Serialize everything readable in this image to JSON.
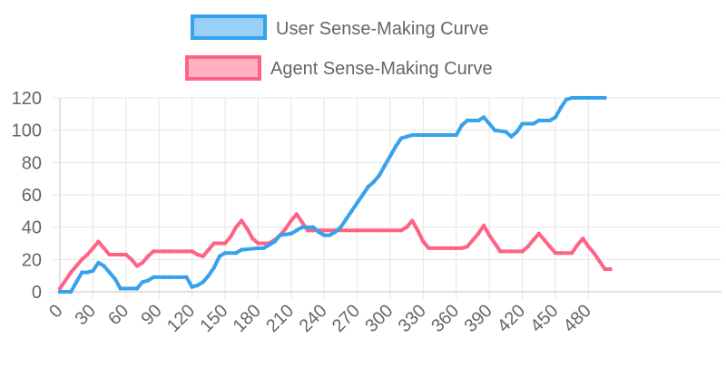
{
  "chart_data": {
    "type": "line",
    "title": "",
    "xlabel": "",
    "ylabel": "",
    "xlim": [
      0,
      495
    ],
    "ylim": [
      0,
      120
    ],
    "x_ticks": [
      0,
      30,
      60,
      90,
      120,
      150,
      180,
      210,
      240,
      270,
      300,
      330,
      360,
      390,
      420,
      450,
      480
    ],
    "y_ticks": [
      0,
      20,
      40,
      60,
      80,
      100,
      120
    ],
    "grid": true,
    "legend_position": "top-center",
    "series": [
      {
        "name": "User Sense-Making Curve",
        "color": "#36a2eb",
        "fill": "#9ad0f5",
        "points": [
          [
            0,
            0
          ],
          [
            10,
            0
          ],
          [
            15,
            6
          ],
          [
            20,
            12
          ],
          [
            25,
            12
          ],
          [
            30,
            13
          ],
          [
            35,
            18
          ],
          [
            40,
            16
          ],
          [
            45,
            12
          ],
          [
            50,
            8
          ],
          [
            55,
            2
          ],
          [
            70,
            2
          ],
          [
            75,
            6
          ],
          [
            80,
            7
          ],
          [
            85,
            9
          ],
          [
            95,
            9
          ],
          [
            100,
            9
          ],
          [
            115,
            9
          ],
          [
            120,
            3
          ],
          [
            125,
            4
          ],
          [
            130,
            6
          ],
          [
            135,
            10
          ],
          [
            140,
            15
          ],
          [
            145,
            22
          ],
          [
            150,
            24
          ],
          [
            160,
            24
          ],
          [
            165,
            26
          ],
          [
            180,
            27
          ],
          [
            185,
            27
          ],
          [
            190,
            29
          ],
          [
            195,
            31
          ],
          [
            200,
            35
          ],
          [
            210,
            36
          ],
          [
            215,
            38
          ],
          [
            220,
            40
          ],
          [
            230,
            40
          ],
          [
            235,
            37
          ],
          [
            240,
            35
          ],
          [
            245,
            35
          ],
          [
            250,
            37
          ],
          [
            255,
            40
          ],
          [
            260,
            45
          ],
          [
            265,
            50
          ],
          [
            270,
            55
          ],
          [
            275,
            60
          ],
          [
            280,
            65
          ],
          [
            285,
            68
          ],
          [
            290,
            72
          ],
          [
            295,
            78
          ],
          [
            300,
            84
          ],
          [
            305,
            90
          ],
          [
            310,
            95
          ],
          [
            315,
            96
          ],
          [
            320,
            97
          ],
          [
            330,
            97
          ],
          [
            340,
            97
          ],
          [
            350,
            97
          ],
          [
            355,
            97
          ],
          [
            360,
            97
          ],
          [
            365,
            103
          ],
          [
            370,
            106
          ],
          [
            380,
            106
          ],
          [
            385,
            108
          ],
          [
            390,
            104
          ],
          [
            395,
            100
          ],
          [
            405,
            99
          ],
          [
            410,
            96
          ],
          [
            415,
            99
          ],
          [
            420,
            104
          ],
          [
            430,
            104
          ],
          [
            435,
            106
          ],
          [
            445,
            106
          ],
          [
            450,
            108
          ],
          [
            455,
            114
          ],
          [
            460,
            119
          ],
          [
            465,
            120
          ],
          [
            475,
            120
          ],
          [
            485,
            120
          ],
          [
            495,
            120
          ]
        ]
      },
      {
        "name": "Agent Sense-Making Curve",
        "color": "#ff6384",
        "fill": "#ffb1c1",
        "points": [
          [
            0,
            2
          ],
          [
            5,
            7
          ],
          [
            10,
            12
          ],
          [
            15,
            16
          ],
          [
            20,
            20
          ],
          [
            25,
            23
          ],
          [
            30,
            27
          ],
          [
            35,
            31
          ],
          [
            40,
            27
          ],
          [
            45,
            23
          ],
          [
            55,
            23
          ],
          [
            60,
            23
          ],
          [
            65,
            20
          ],
          [
            70,
            16
          ],
          [
            75,
            18
          ],
          [
            80,
            22
          ],
          [
            85,
            25
          ],
          [
            95,
            25
          ],
          [
            100,
            25
          ],
          [
            115,
            25
          ],
          [
            120,
            25
          ],
          [
            125,
            23
          ],
          [
            130,
            22
          ],
          [
            135,
            26
          ],
          [
            140,
            30
          ],
          [
            150,
            30
          ],
          [
            155,
            34
          ],
          [
            160,
            40
          ],
          [
            165,
            44
          ],
          [
            170,
            39
          ],
          [
            175,
            33
          ],
          [
            180,
            30
          ],
          [
            190,
            30
          ],
          [
            195,
            32
          ],
          [
            200,
            35
          ],
          [
            205,
            39
          ],
          [
            210,
            44
          ],
          [
            215,
            48
          ],
          [
            220,
            43
          ],
          [
            225,
            38
          ],
          [
            230,
            38
          ],
          [
            240,
            38
          ],
          [
            250,
            38
          ],
          [
            270,
            38
          ],
          [
            290,
            38
          ],
          [
            310,
            38
          ],
          [
            315,
            40
          ],
          [
            320,
            44
          ],
          [
            325,
            38
          ],
          [
            330,
            31
          ],
          [
            335,
            27
          ],
          [
            345,
            27
          ],
          [
            355,
            27
          ],
          [
            365,
            27
          ],
          [
            370,
            28
          ],
          [
            375,
            32
          ],
          [
            380,
            36
          ],
          [
            385,
            41
          ],
          [
            390,
            35
          ],
          [
            395,
            30
          ],
          [
            400,
            25
          ],
          [
            410,
            25
          ],
          [
            420,
            25
          ],
          [
            425,
            28
          ],
          [
            430,
            32
          ],
          [
            435,
            36
          ],
          [
            440,
            32
          ],
          [
            445,
            28
          ],
          [
            450,
            24
          ],
          [
            455,
            24
          ],
          [
            465,
            24
          ],
          [
            470,
            29
          ],
          [
            475,
            33
          ],
          [
            480,
            28
          ],
          [
            485,
            24
          ],
          [
            490,
            19
          ],
          [
            495,
            14
          ],
          [
            500,
            14
          ]
        ]
      }
    ]
  }
}
